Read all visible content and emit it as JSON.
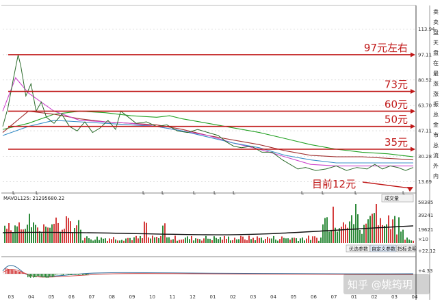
{
  "chart_data": {
    "type": "line",
    "price_ticks": [
      "113.94",
      "97.11",
      "80.52",
      "63.70",
      "47.11",
      "30.28",
      "13.69"
    ],
    "price_ticks_values": [
      113.94,
      97.11,
      80.52,
      63.7,
      47.11,
      30.28,
      13.69
    ],
    "ylim": [
      8,
      125
    ],
    "x_labels": [
      "03",
      "04",
      "05",
      "06",
      "07",
      "08",
      "09",
      "10",
      "11",
      "12",
      "01",
      "02",
      "03",
      "04",
      "05",
      "06",
      "07",
      "01",
      "02",
      "03",
      "04"
    ],
    "levels": [
      {
        "label": "97元左右",
        "value": 97.11
      },
      {
        "label": "73元",
        "value": 73
      },
      {
        "label": "60元",
        "value": 60
      },
      {
        "label": "50元",
        "value": 50
      },
      {
        "label": "35元",
        "value": 35
      }
    ],
    "current_label": "目前12元",
    "current_value": 12,
    "price_series": [
      [
        0,
        50
      ],
      [
        2,
        62
      ],
      [
        4,
        80
      ],
      [
        6,
        97
      ],
      [
        7,
        90
      ],
      [
        9,
        70
      ],
      [
        11,
        78
      ],
      [
        13,
        60
      ],
      [
        15,
        66
      ],
      [
        17,
        56
      ],
      [
        20,
        52
      ],
      [
        23,
        58
      ],
      [
        26,
        50
      ],
      [
        29,
        47
      ],
      [
        32,
        53
      ],
      [
        35,
        46
      ],
      [
        38,
        49
      ],
      [
        41,
        54
      ],
      [
        44,
        48
      ],
      [
        46,
        60
      ],
      [
        49,
        56
      ],
      [
        52,
        52
      ],
      [
        56,
        53
      ],
      [
        60,
        50
      ],
      [
        64,
        51
      ],
      [
        68,
        47
      ],
      [
        72,
        46
      ],
      [
        76,
        48
      ],
      [
        80,
        46
      ],
      [
        84,
        44
      ],
      [
        87,
        40
      ],
      [
        90,
        37
      ],
      [
        93,
        36
      ],
      [
        97,
        37
      ],
      [
        101,
        33
      ],
      [
        105,
        33
      ],
      [
        109,
        28
      ],
      [
        112,
        25
      ],
      [
        115,
        22
      ],
      [
        118,
        23
      ],
      [
        122,
        21
      ],
      [
        126,
        22
      ],
      [
        130,
        24
      ],
      [
        134,
        21
      ],
      [
        138,
        23
      ],
      [
        142,
        22
      ],
      [
        145,
        25
      ],
      [
        148,
        22
      ],
      [
        151,
        24
      ],
      [
        154,
        23
      ],
      [
        157,
        21
      ],
      [
        160,
        23
      ]
    ],
    "ma_series": [
      {
        "color": "#22a022",
        "points": [
          [
            0,
            48
          ],
          [
            10,
            52
          ],
          [
            20,
            58
          ],
          [
            30,
            60
          ],
          [
            40,
            59
          ],
          [
            50,
            57
          ],
          [
            60,
            56
          ],
          [
            65,
            57
          ],
          [
            70,
            55
          ],
          [
            80,
            52
          ],
          [
            90,
            49
          ],
          [
            100,
            46
          ],
          [
            110,
            42
          ],
          [
            120,
            38
          ],
          [
            130,
            35
          ],
          [
            140,
            33
          ],
          [
            150,
            32
          ],
          [
            160,
            30
          ]
        ]
      },
      {
        "color": "#a03030",
        "points": [
          [
            0,
            46
          ],
          [
            10,
            60
          ],
          [
            20,
            58
          ],
          [
            30,
            55
          ],
          [
            40,
            53
          ],
          [
            50,
            52
          ],
          [
            60,
            51
          ],
          [
            70,
            48
          ],
          [
            80,
            44
          ],
          [
            90,
            41
          ],
          [
            100,
            38
          ],
          [
            110,
            34
          ],
          [
            120,
            31
          ],
          [
            130,
            30
          ],
          [
            140,
            30
          ],
          [
            150,
            29
          ],
          [
            160,
            28
          ]
        ]
      },
      {
        "color": "#cc44cc",
        "points": [
          [
            0,
            60
          ],
          [
            5,
            82
          ],
          [
            10,
            72
          ],
          [
            20,
            60
          ],
          [
            30,
            54
          ],
          [
            40,
            53
          ],
          [
            50,
            52
          ],
          [
            60,
            50
          ],
          [
            70,
            47
          ],
          [
            80,
            44
          ],
          [
            90,
            39
          ],
          [
            100,
            35
          ],
          [
            110,
            30
          ],
          [
            120,
            25
          ],
          [
            130,
            24
          ],
          [
            140,
            24
          ],
          [
            150,
            24
          ],
          [
            160,
            24
          ]
        ]
      },
      {
        "color": "#3a8fc8",
        "points": [
          [
            0,
            44
          ],
          [
            10,
            50
          ],
          [
            20,
            54
          ],
          [
            30,
            53
          ],
          [
            40,
            52
          ],
          [
            50,
            51
          ],
          [
            60,
            50
          ],
          [
            70,
            47
          ],
          [
            80,
            43
          ],
          [
            90,
            39
          ],
          [
            100,
            36
          ],
          [
            110,
            31
          ],
          [
            120,
            28
          ],
          [
            130,
            26
          ],
          [
            140,
            26
          ],
          [
            150,
            26
          ],
          [
            160,
            26
          ]
        ]
      }
    ],
    "volume_label": "MAVOL125: 21295680.22",
    "volume_ticks": [
      "58385",
      "39241",
      "19621",
      "×10"
    ],
    "macd_ticks": [
      "+22.12",
      "+4.33"
    ],
    "settings_label": "成交量"
  },
  "side_panel": [
    "卖",
    "卖",
    "盘",
    "天",
    "盘",
    "在",
    "最",
    "涨",
    "涨",
    "振",
    "总",
    "金",
    "市",
    "总",
    "流",
    "外",
    "内"
  ],
  "volume_buttons": [
    "优选参数",
    "自定义参数",
    "指标说明"
  ],
  "watermark": "知乎 @姚筠玥",
  "colors": {
    "annotation": "#c01818",
    "axis": "#444444",
    "up": "#d43c3c",
    "down": "#2d8a3a"
  }
}
